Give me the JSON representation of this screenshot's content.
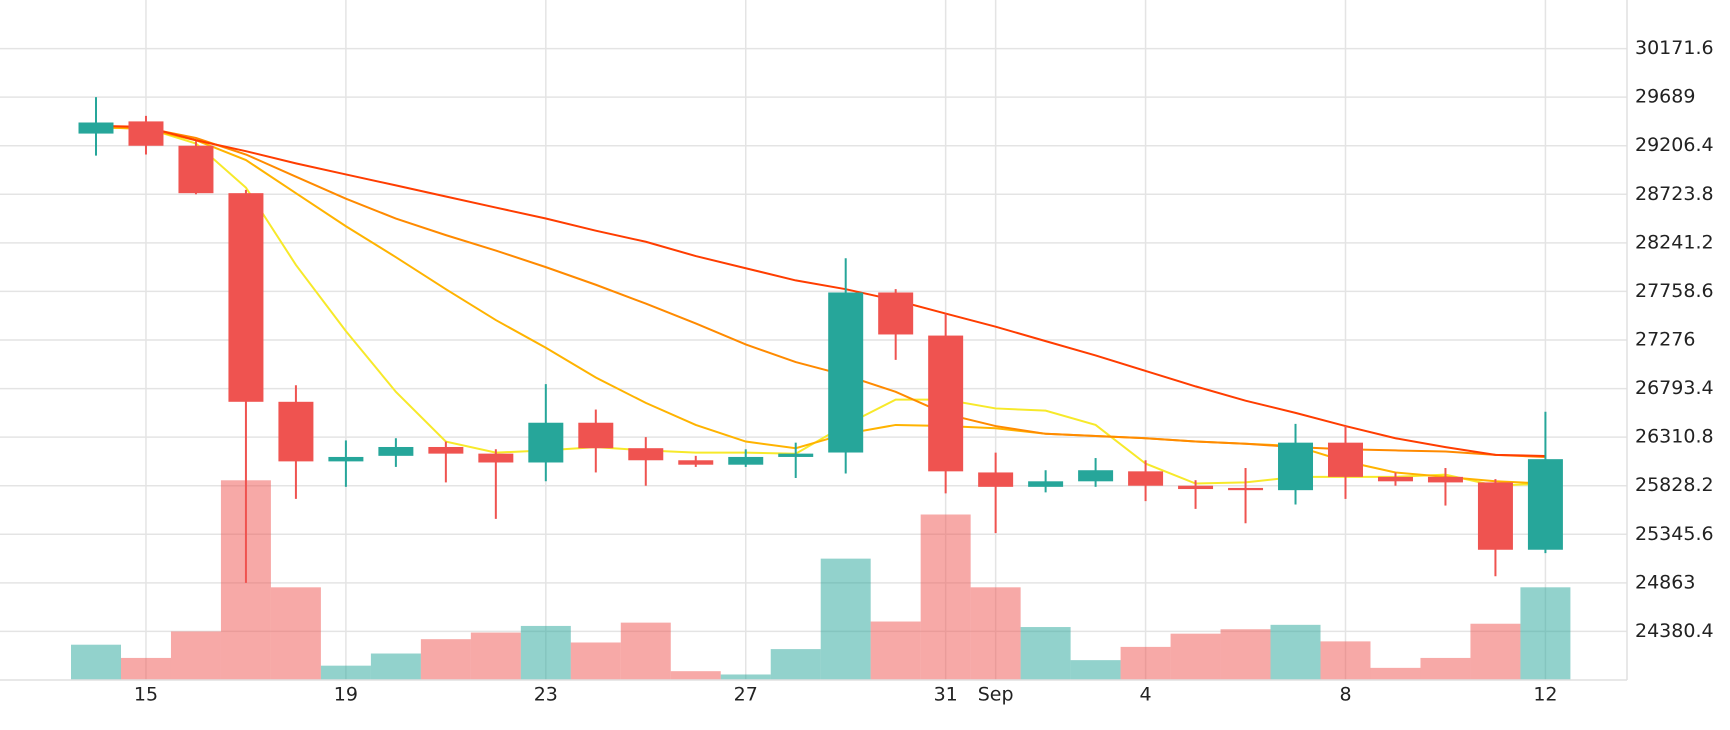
{
  "chart_data": {
    "type": "candlestick",
    "categories": [
      null,
      "15",
      null,
      null,
      null,
      "19",
      null,
      null,
      null,
      "23",
      null,
      null,
      null,
      "27",
      null,
      null,
      null,
      "31",
      "Sep",
      null,
      null,
      "4",
      null,
      null,
      null,
      "8",
      null,
      null,
      null,
      "12"
    ],
    "open": [
      29327,
      29448,
      29206,
      28735,
      26662,
      26070,
      26125,
      26213,
      26147,
      26059,
      26454,
      26201,
      26081,
      26037,
      26114,
      26158,
      27748,
      27320,
      25960,
      25817,
      25872,
      25971,
      25828,
      25806,
      25784,
      26256,
      25916,
      25916,
      25861,
      25192
    ],
    "high": [
      29689,
      29503,
      29250,
      28768,
      26826,
      26278,
      26300,
      26267,
      26190,
      26837,
      26585,
      26311,
      26125,
      26190,
      26256,
      28088,
      27781,
      27539,
      26157,
      25982,
      26103,
      26081,
      25883,
      26004,
      26443,
      26421,
      25960,
      26004,
      25894,
      26563
    ],
    "low": [
      29108,
      29119,
      28724,
      24863,
      25697,
      25817,
      26015,
      25861,
      25499,
      25872,
      25960,
      25828,
      26015,
      26015,
      25905,
      25949,
      27079,
      25752,
      25357,
      25762,
      25817,
      25675,
      25598,
      25455,
      25642,
      25697,
      25828,
      25631,
      24929,
      25159
    ],
    "close": [
      29437,
      29206,
      28735,
      26662,
      26070,
      26114,
      26213,
      26147,
      26059,
      26454,
      26201,
      26081,
      26037,
      26114,
      26147,
      27748,
      27331,
      25971,
      25817,
      25872,
      25982,
      25828,
      25795,
      25784,
      26256,
      25916,
      25872,
      25861,
      25192,
      26092
    ],
    "volume": [
      32,
      20,
      44,
      181,
      84,
      13,
      24,
      37,
      43,
      49,
      34,
      52,
      8,
      5,
      28,
      110,
      53,
      150,
      84,
      48,
      18,
      30,
      42,
      46,
      50,
      35,
      11,
      20,
      51,
      84
    ],
    "up_color": "#26a69a",
    "down_color": "#ef5350",
    "moving_averages": [
      {
        "color": "#f7e92a",
        "values": [
          29382,
          29382,
          29228,
          28790,
          28022,
          27364,
          26761,
          26267,
          26157,
          26179,
          26212,
          26179,
          26157,
          26157,
          26146,
          26432,
          26684,
          26684,
          26596,
          26574,
          26432,
          26048,
          25850,
          25861,
          25916,
          25916,
          25916,
          25938,
          25828,
          25850
        ]
      },
      {
        "color": "#ffb300",
        "values": [
          29393,
          29371,
          29261,
          29064,
          28735,
          28406,
          28099,
          27781,
          27474,
          27199,
          26903,
          26651,
          26432,
          26267,
          26201,
          26344,
          26432,
          26421,
          26399,
          26344,
          26322,
          26300,
          26267,
          26245,
          26223,
          26070,
          25960,
          25916,
          25872,
          25850
        ]
      },
      {
        "color": "#ff8a00",
        "values": [
          29404,
          29382,
          29283,
          29119,
          28899,
          28680,
          28483,
          28318,
          28165,
          28000,
          27825,
          27638,
          27441,
          27232,
          27057,
          26925,
          26761,
          26541,
          26421,
          26344,
          26322,
          26300,
          26267,
          26245,
          26212,
          26190,
          26179,
          26168,
          26135,
          26113
        ]
      },
      {
        "color": "#ff3d00",
        "values": [
          29404,
          29393,
          29261,
          29152,
          29031,
          28921,
          28812,
          28702,
          28592,
          28483,
          28362,
          28252,
          28110,
          27989,
          27868,
          27781,
          27671,
          27539,
          27408,
          27265,
          27123,
          26969,
          26815,
          26673,
          26552,
          26421,
          26300,
          26212,
          26135,
          26124
        ]
      }
    ],
    "ylim": [
      23897.8,
      30654.2
    ],
    "yticks": [
      24380.4,
      24863,
      25345.6,
      25828.2,
      26310.8,
      26793.4,
      27276,
      27758.6,
      28241.2,
      28723.8,
      29206.4,
      29689,
      30171.6
    ],
    "grid": true
  }
}
